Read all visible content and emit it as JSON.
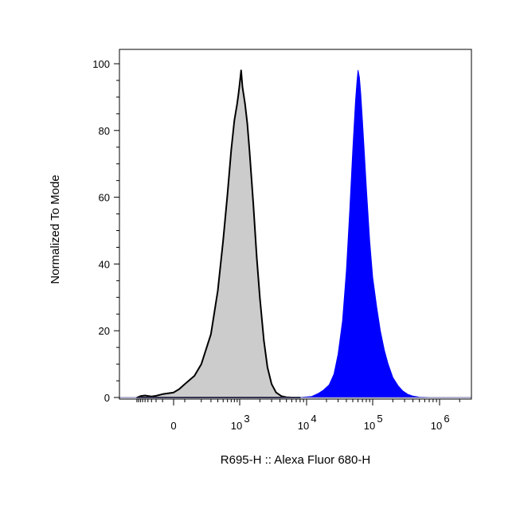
{
  "chart_data": {
    "type": "area",
    "title": "",
    "xlabel": "R695-H :: Alexa Fluor 680-H",
    "ylabel": "Normalized To Mode",
    "x_scale": "biexponential",
    "xlim": [
      -1000,
      3000000
    ],
    "ylim": [
      0,
      100
    ],
    "grid": false,
    "legend": "none",
    "y_ticks": [
      {
        "value": 0,
        "label": "0"
      },
      {
        "value": 20,
        "label": "20"
      },
      {
        "value": 40,
        "label": "40"
      },
      {
        "value": 60,
        "label": "60"
      },
      {
        "value": 80,
        "label": "80"
      },
      {
        "value": 100,
        "label": "100"
      }
    ],
    "x_ticks": [
      {
        "value": 0,
        "base": "0",
        "exp": ""
      },
      {
        "value": 1000,
        "base": "10",
        "exp": "3"
      },
      {
        "value": 10000,
        "base": "10",
        "exp": "4"
      },
      {
        "value": 100000,
        "base": "10",
        "exp": "5"
      },
      {
        "value": 1000000,
        "base": "10",
        "exp": "6"
      }
    ],
    "series": [
      {
        "fill": "#cccccc",
        "stroke": "#000000",
        "x": [
          -900,
          -700,
          -500,
          -300,
          -200,
          -100,
          0,
          50,
          100,
          150,
          200,
          300,
          400,
          500,
          600,
          700,
          800,
          900,
          950,
          1000,
          1050,
          1100,
          1200,
          1300,
          1400,
          1600,
          1800,
          2000,
          2300,
          2600,
          3000,
          3500,
          4200,
          5000,
          6000,
          7000,
          8000
        ],
        "y": [
          0,
          0.4,
          0.6,
          0.3,
          0.5,
          1.0,
          1.5,
          2.5,
          4.0,
          6.5,
          10,
          19,
          32,
          47,
          61,
          74,
          83,
          88,
          91,
          94,
          98,
          93,
          88,
          82,
          74,
          58,
          42,
          30,
          17,
          9,
          4,
          1.5,
          0.4,
          0.1,
          0,
          0,
          0
        ]
      },
      {
        "fill": "#0000ff",
        "stroke": "#0000ff",
        "x": [
          8000,
          12000,
          15000,
          18000,
          22000,
          26000,
          30000,
          35000,
          40000,
          45000,
          50000,
          55000,
          58000,
          60000,
          63000,
          66000,
          70000,
          75000,
          80000,
          90000,
          100000,
          115000,
          130000,
          150000,
          170000,
          200000,
          240000,
          280000,
          330000,
          400000,
          500000,
          700000,
          1000000,
          3000000
        ],
        "y": [
          0,
          0.3,
          1.2,
          2.2,
          3.8,
          7,
          13,
          23,
          38,
          56,
          74,
          89,
          95,
          98,
          96,
          91,
          83,
          73,
          63,
          47,
          36,
          27,
          20,
          14,
          10,
          6,
          3.5,
          2,
          1,
          0.4,
          0.1,
          0,
          0,
          0
        ]
      }
    ]
  }
}
